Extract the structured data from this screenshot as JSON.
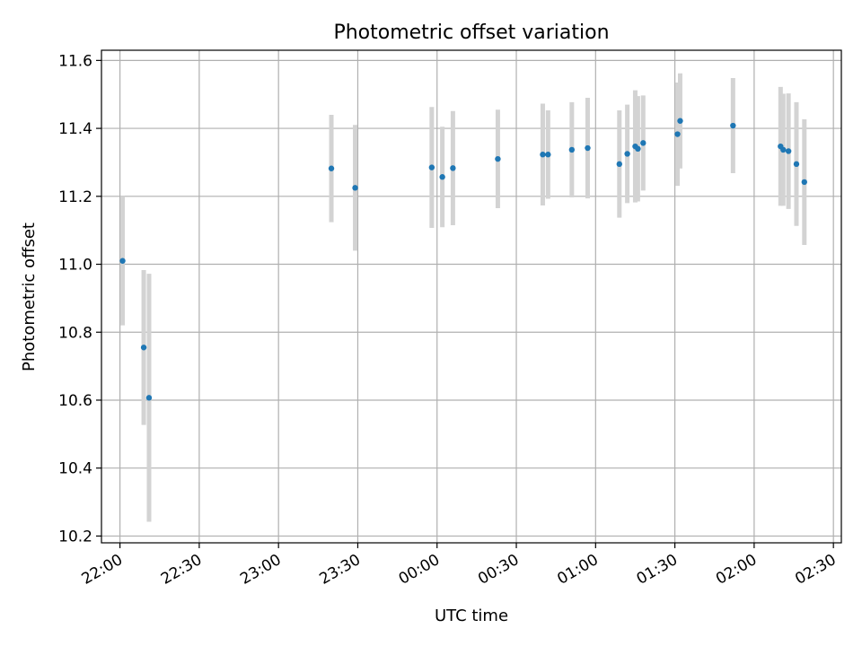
{
  "chart_data": {
    "type": "scatter",
    "title": "Photometric offset variation",
    "xlabel": "UTC time",
    "ylabel": "Photometric offset",
    "x_axis": "time",
    "xlim": [
      "21:53",
      "02:33"
    ],
    "ylim": [
      10.18,
      11.63
    ],
    "grid": true,
    "legend": "none",
    "colors": {
      "points": "#1f77b4",
      "errorbars": "#d3d3d3",
      "grid": "#b0b0b0"
    },
    "x_ticks": [
      "22:00",
      "22:30",
      "23:00",
      "23:30",
      "00:00",
      "00:30",
      "01:00",
      "01:30",
      "02:00",
      "02:30"
    ],
    "y_ticks": [
      "10.2",
      "10.4",
      "10.6",
      "10.8",
      "11.0",
      "11.2",
      "11.4",
      "11.6"
    ],
    "points": [
      {
        "t": "22:01",
        "y": 11.01,
        "err": 0.19
      },
      {
        "t": "22:09",
        "y": 10.755,
        "err": 0.228
      },
      {
        "t": "22:11",
        "y": 10.607,
        "err": 0.365
      },
      {
        "t": "23:20",
        "y": 11.282,
        "err": 0.158
      },
      {
        "t": "23:29",
        "y": 11.225,
        "err": 0.185
      },
      {
        "t": "23:58",
        "y": 11.285,
        "err": 0.178
      },
      {
        "t": "00:02",
        "y": 11.257,
        "err": 0.148
      },
      {
        "t": "00:06",
        "y": 11.283,
        "err": 0.168
      },
      {
        "t": "00:23",
        "y": 11.31,
        "err": 0.145
      },
      {
        "t": "00:40",
        "y": 11.323,
        "err": 0.15
      },
      {
        "t": "00:42",
        "y": 11.323,
        "err": 0.13
      },
      {
        "t": "00:51",
        "y": 11.337,
        "err": 0.14
      },
      {
        "t": "00:57",
        "y": 11.342,
        "err": 0.148
      },
      {
        "t": "01:09",
        "y": 11.295,
        "err": 0.158
      },
      {
        "t": "01:12",
        "y": 11.325,
        "err": 0.145
      },
      {
        "t": "01:15",
        "y": 11.347,
        "err": 0.165
      },
      {
        "t": "01:16",
        "y": 11.34,
        "err": 0.155
      },
      {
        "t": "01:18",
        "y": 11.357,
        "err": 0.14
      },
      {
        "t": "01:31",
        "y": 11.383,
        "err": 0.152
      },
      {
        "t": "01:32",
        "y": 11.422,
        "err": 0.14
      },
      {
        "t": "01:52",
        "y": 11.408,
        "err": 0.14
      },
      {
        "t": "02:10",
        "y": 11.347,
        "err": 0.175
      },
      {
        "t": "02:11",
        "y": 11.337,
        "err": 0.165
      },
      {
        "t": "02:13",
        "y": 11.333,
        "err": 0.17
      },
      {
        "t": "02:16",
        "y": 11.295,
        "err": 0.182
      },
      {
        "t": "02:19",
        "y": 11.242,
        "err": 0.185
      }
    ]
  }
}
